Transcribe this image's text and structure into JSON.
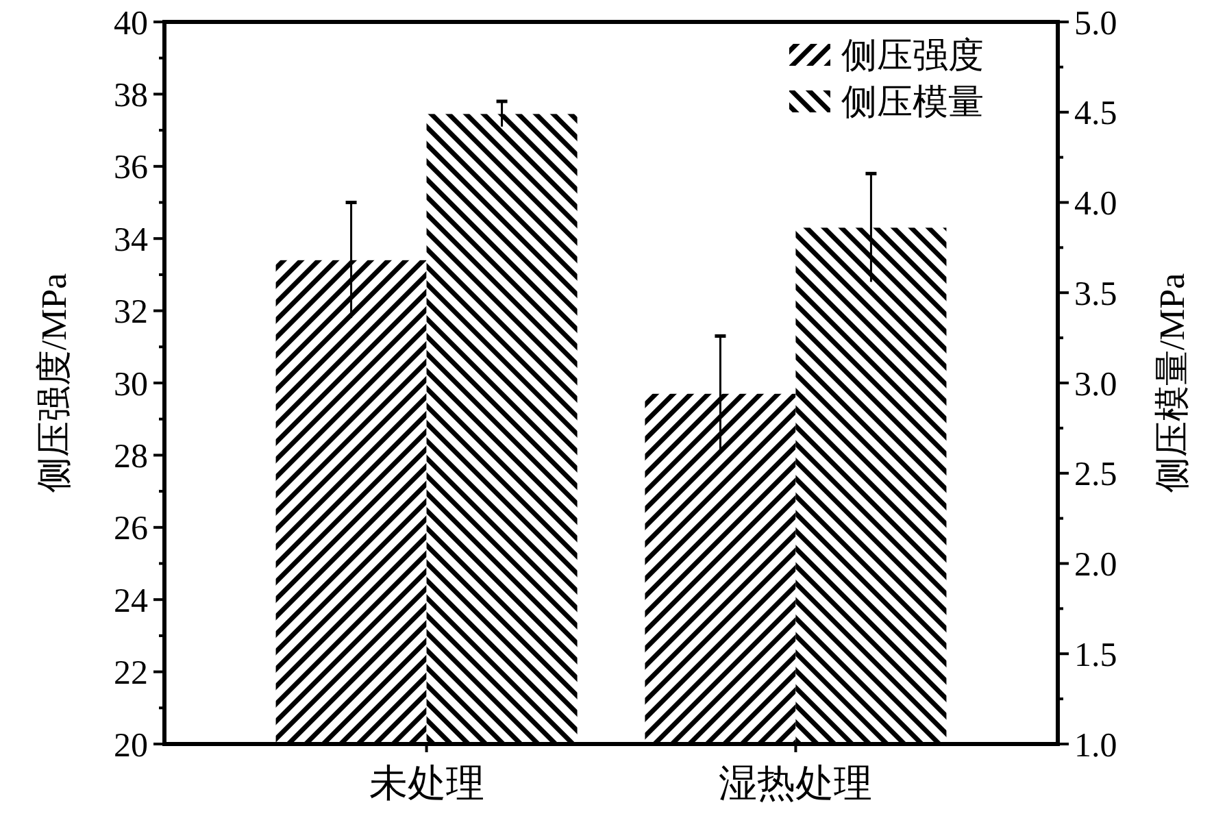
{
  "chart_data": {
    "type": "bar",
    "categories": [
      "未处理",
      "湿热处理"
    ],
    "ylabel": "侧压强度/MPa",
    "y2label": "侧压模量/MPa",
    "ylim": [
      20,
      40
    ],
    "yticks": [
      20,
      {
        "value": 21,
        "label": null
      },
      22,
      {
        "value": 23,
        "label": null
      },
      24,
      {
        "value": 25,
        "label": null
      },
      26,
      {
        "value": 27,
        "label": null
      },
      28,
      {
        "value": 29,
        "label": null
      },
      30,
      {
        "value": 31,
        "label": null
      },
      32,
      {
        "value": 33,
        "label": null
      },
      34,
      {
        "value": 35,
        "label": null
      },
      36,
      {
        "value": 37,
        "label": null
      },
      38,
      {
        "value": 39,
        "label": null
      },
      40
    ],
    "y2lim": [
      1,
      5
    ],
    "y2ticks": [
      {
        "value": 1,
        "label": "1.0"
      },
      {
        "value": 1.25,
        "label": null
      },
      {
        "value": 1.5,
        "label": "1.5"
      },
      {
        "value": 1.75,
        "label": null
      },
      {
        "value": 2,
        "label": "2.0"
      },
      {
        "value": 2.25,
        "label": null
      },
      {
        "value": 2.5,
        "label": "2.5"
      },
      {
        "value": 2.75,
        "label": null
      },
      {
        "value": 3,
        "label": "3.0"
      },
      {
        "value": 3.25,
        "label": null
      },
      {
        "value": 3.5,
        "label": "3.5"
      },
      {
        "value": 3.75,
        "label": null
      },
      {
        "value": 4,
        "label": "4.0"
      },
      {
        "value": 4.25,
        "label": null
      },
      {
        "value": 4.5,
        "label": "4.5"
      },
      {
        "value": 4.75,
        "label": null
      },
      {
        "value": 5,
        "label": "5.0"
      }
    ],
    "series": [
      {
        "name": "侧压强度",
        "color": "#000000",
        "values": [
          33.4,
          29.7
        ],
        "errors": [
          1.6,
          1.6
        ]
      },
      {
        "name": "侧压模量",
        "color": "#000000",
        "values": [
          4.49,
          3.86
        ],
        "errors": [
          0.07,
          0.3
        ],
        "axis": "y2"
      }
    ],
    "legend": "top right",
    "grid": false
  }
}
